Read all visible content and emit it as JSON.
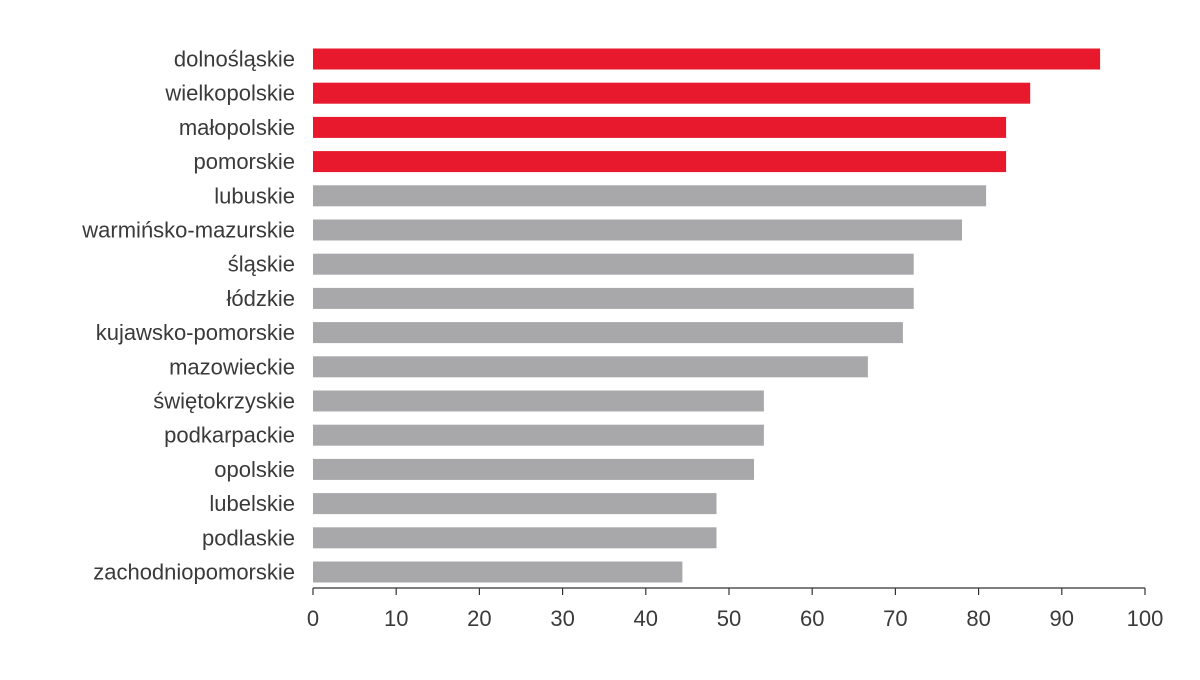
{
  "chart_data": {
    "type": "bar",
    "orientation": "horizontal",
    "categories": [
      "dolnośląskie",
      "wielkopolskie",
      "małopolskie",
      "pomorskie",
      "lubuskie",
      "warmińsko-mazurskie",
      "śląskie",
      "łódzkie",
      "kujawsko-pomorskie",
      "mazowieckie",
      "świętokrzyskie",
      "podkarpackie",
      "opolskie",
      "lubelskie",
      "podlaskie",
      "zachodniopomorskie"
    ],
    "values": [
      94.6,
      86.2,
      83.3,
      83.3,
      80.9,
      78.0,
      72.2,
      72.2,
      70.9,
      66.7,
      54.2,
      54.2,
      53.0,
      48.5,
      48.5,
      44.4
    ],
    "highlighted": [
      true,
      true,
      true,
      true,
      false,
      false,
      false,
      false,
      false,
      false,
      false,
      false,
      false,
      false,
      false,
      false
    ],
    "colors": {
      "highlight": "#e8192c",
      "default": "#a8a8ab",
      "axis": "#333333",
      "text": "#3a3a3a"
    },
    "xlim": [
      0,
      100
    ],
    "xticks": [
      "0",
      "10",
      "20",
      "30",
      "40",
      "50",
      "60",
      "70",
      "80",
      "90",
      "100"
    ],
    "title": "",
    "xlabel": "",
    "ylabel": "",
    "grid": false,
    "legend": "none"
  }
}
